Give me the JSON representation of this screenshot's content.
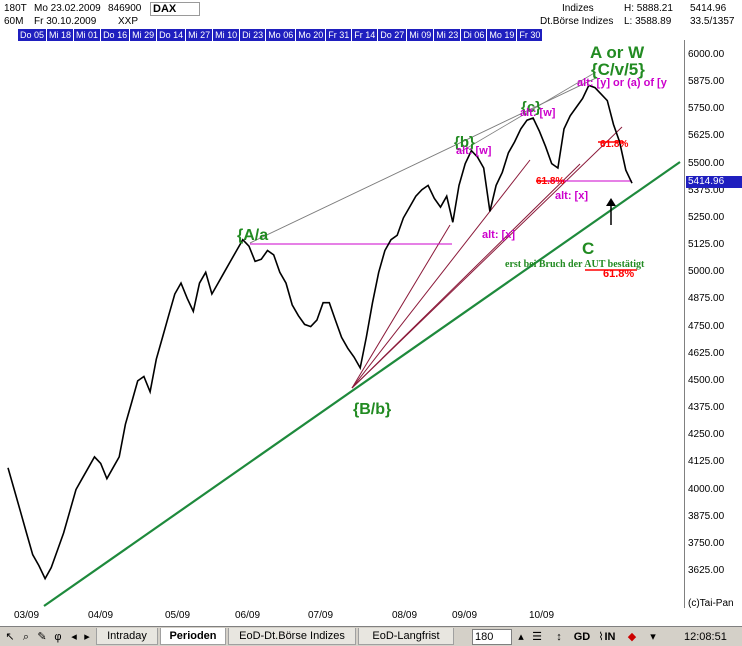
{
  "header": {
    "interval_1": "180T",
    "from_label": "Mo 23.02.2009",
    "symbol_code": "846900",
    "interval_2": "60M",
    "to_label": "Fr 30.10.2009",
    "exchange": "XXP",
    "title": "DAX",
    "group": "Indizes",
    "source": "Dt.Börse Indizes",
    "high": "H: 5888.21",
    "low": "L: 3588.89",
    "last": "5414.96",
    "ratio": "33.5/1357"
  },
  "date_strip": [
    "Do 05",
    "Mi 18",
    "Mi 01",
    "Do 16",
    "Mi 29",
    "Do 14",
    "Mi 27",
    "Mi 10",
    "Di 23",
    "Mo 06",
    "Mo 20",
    "Fr 31",
    "Fr 14",
    "Do 27",
    "Mi 09",
    "Mi 23",
    "Di 06",
    "Mo 19",
    "Fr 30"
  ],
  "y_ticks": [
    "6000.00",
    "5875.00",
    "5750.00",
    "5625.00",
    "5500.00",
    "5375.00",
    "5250.00",
    "5125.00",
    "5000.00",
    "4875.00",
    "4750.00",
    "4625.00",
    "4500.00",
    "4375.00",
    "4250.00",
    "4125.00",
    "4000.00",
    "3875.00",
    "3750.00",
    "3625.00"
  ],
  "price_flag": "5414.96",
  "x_ticks": [
    "03/09",
    "04/09",
    "05/09",
    "06/09",
    "07/09",
    "08/09",
    "09/09",
    "10/09"
  ],
  "credit": "(c)Tai-Pan",
  "annotations": {
    "a_or_w": "A or W",
    "cvs": "{C/v/5}",
    "alt_y": "alt: [y] or (a) of [y",
    "c_label": "{c}",
    "alt_w_top": "alt: [w]",
    "b_label": "{b}",
    "alt_w": "alt: [w]",
    "pct_1": "61.8%",
    "pct_2": "61.8%",
    "alt_x_1": "alt: [x]",
    "alt_x_2": "alt: [x]",
    "aa": "{A/a",
    "bb": "{B/b}",
    "big_c": "C",
    "confirm": "erst bei Bruch der AUT bestätigt",
    "pct_3": "61.8%"
  },
  "toolbar": {
    "tab_intraday": "Intraday",
    "tab_perioden": "Perioden",
    "tab_eod_dt": "EoD-Dt.Börse Indizes",
    "tab_eod_lang": "EoD-Langfrist",
    "interval_value": "180",
    "gd_label": "GD",
    "in_label": "IN",
    "clock": "12:08:51"
  },
  "chart_data": {
    "type": "line",
    "title": "DAX",
    "ylim": [
      3588.89,
      6050
    ],
    "y_ticks": [
      3625,
      3750,
      3875,
      4000,
      4125,
      4250,
      4375,
      4500,
      4625,
      4750,
      4875,
      5000,
      5125,
      5250,
      5375,
      5500,
      5625,
      5750,
      5875,
      6000
    ],
    "x_tick_labels": [
      "03/09",
      "04/09",
      "05/09",
      "06/09",
      "07/09",
      "08/09",
      "09/09",
      "10/09"
    ],
    "last_value": 5414.96,
    "high": 5888.21,
    "low": 3588.89,
    "series": [
      {
        "values": [
          4100,
          4000,
          3900,
          3800,
          3700,
          3650,
          3590,
          3640,
          3720,
          3800,
          3900,
          4000,
          4050,
          4100,
          4150,
          4120,
          4050,
          4100,
          4150,
          4300,
          4400,
          4500,
          4520,
          4450,
          4600,
          4700,
          4800,
          4900,
          4950,
          4880,
          4820,
          4950,
          5000,
          4900,
          4950,
          5000,
          5050,
          5100,
          5150,
          5120,
          5050,
          5060,
          5100,
          5080,
          5000,
          4950,
          4850,
          4800,
          4760,
          4750,
          4780,
          4860,
          4860,
          4780,
          4700,
          4650,
          4610,
          4560,
          4700,
          4860,
          5000,
          5100,
          5150,
          5170,
          5250,
          5300,
          5350,
          5380,
          5400,
          5340,
          5300,
          5350,
          5230,
          5400,
          5500,
          5560,
          5530,
          5480,
          5280,
          5400,
          5460,
          5550,
          5600,
          5660,
          5700,
          5710,
          5650,
          5580,
          5500,
          5480,
          5660,
          5720,
          5760,
          5800,
          5860,
          5850,
          5820,
          5790,
          5680,
          5600,
          5470,
          5410
        ]
      }
    ]
  }
}
